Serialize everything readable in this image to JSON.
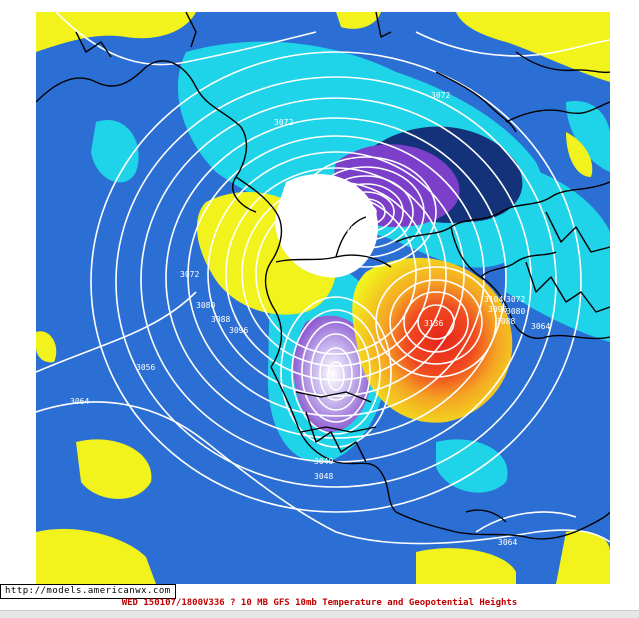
{
  "map": {
    "contour_labels": [
      {
        "id": "lbl-3072-top",
        "text": "3072"
      },
      {
        "id": "lbl-3072-nw",
        "text": "3072"
      },
      {
        "id": "lbl-3072-w",
        "text": "3072"
      },
      {
        "id": "lbl-3080-w",
        "text": "3080"
      },
      {
        "id": "lbl-3088-w",
        "text": "3088"
      },
      {
        "id": "lbl-3096-w",
        "text": "3096"
      },
      {
        "id": "lbl-3056-w",
        "text": "3056"
      },
      {
        "id": "lbl-3064-w",
        "text": "3064"
      },
      {
        "id": "lbl-888",
        "text": "888"
      },
      {
        "id": "lbl-872",
        "text": "872"
      },
      {
        "id": "lbl-3136",
        "text": "3136"
      },
      {
        "id": "lbl-3104-e",
        "text": "3104"
      },
      {
        "id": "lbl-3096-e",
        "text": "3096"
      },
      {
        "id": "lbl-3088-e",
        "text": "3088"
      },
      {
        "id": "lbl-3072-e",
        "text": "3072"
      },
      {
        "id": "lbl-3080-e",
        "text": "3080"
      },
      {
        "id": "lbl-3064-e",
        "text": "3064"
      },
      {
        "id": "lbl-3040-s",
        "text": "3040"
      },
      {
        "id": "lbl-3048-s",
        "text": "3048"
      },
      {
        "id": "lbl-3064-se",
        "text": "3064"
      }
    ],
    "colors": {
      "ocean_blue": "#2b6fd4",
      "cyan": "#1fd3e8",
      "yellow": "#f2f21c",
      "orange": "#f5a623",
      "red": "#e8241a",
      "purple": "#7b3fc9",
      "navy": "#14327a"
    }
  },
  "footer": {
    "source_url": "http://models.americanwx.com",
    "caption": "WED 150107/1800V336  ? 10 MB GFS 10mb Temperature and Geopotential Heights"
  }
}
